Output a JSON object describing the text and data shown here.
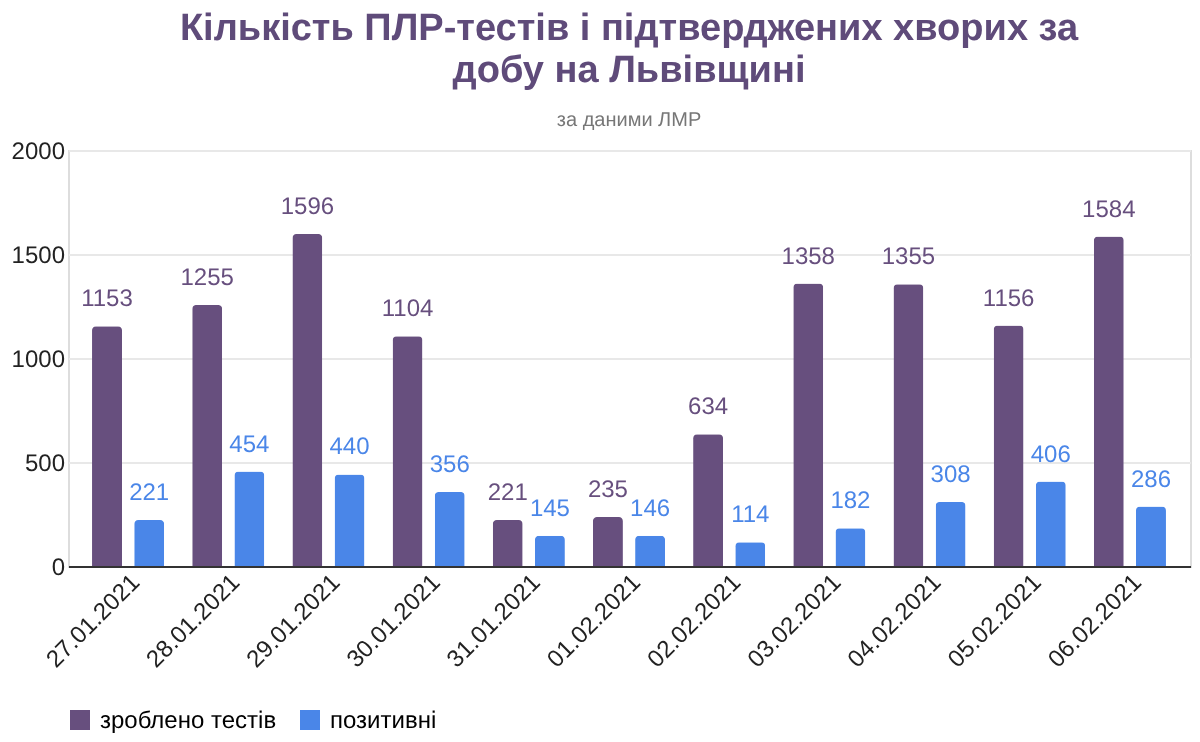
{
  "chart_data": {
    "type": "bar",
    "title": "Кількість ПЛР-тестів і підтверджених хворих за добу на Львівщині",
    "subtitle": "за даними ЛМР",
    "categories": [
      "27.01.2021",
      "28.01.2021",
      "29.01.2021",
      "30.01.2021",
      "31.01.2021",
      "01.02.2021",
      "02.02.2021",
      "03.02.2021",
      "04.02.2021",
      "05.02.2021",
      "06.02.2021"
    ],
    "series": [
      {
        "name": "зроблено тестів",
        "color": "#674f7e",
        "values": [
          1153,
          1255,
          1596,
          1104,
          221,
          235,
          634,
          1358,
          1355,
          1156,
          1584
        ]
      },
      {
        "name": "позитивні",
        "color": "#4a86e8",
        "values": [
          221,
          454,
          440,
          356,
          145,
          146,
          114,
          182,
          308,
          406,
          286
        ]
      }
    ],
    "ylim": [
      0,
      2000
    ],
    "yticks": [
      0,
      500,
      1000,
      1500,
      2000
    ],
    "grid": "y",
    "legend": "bottom",
    "data_labels": true
  }
}
